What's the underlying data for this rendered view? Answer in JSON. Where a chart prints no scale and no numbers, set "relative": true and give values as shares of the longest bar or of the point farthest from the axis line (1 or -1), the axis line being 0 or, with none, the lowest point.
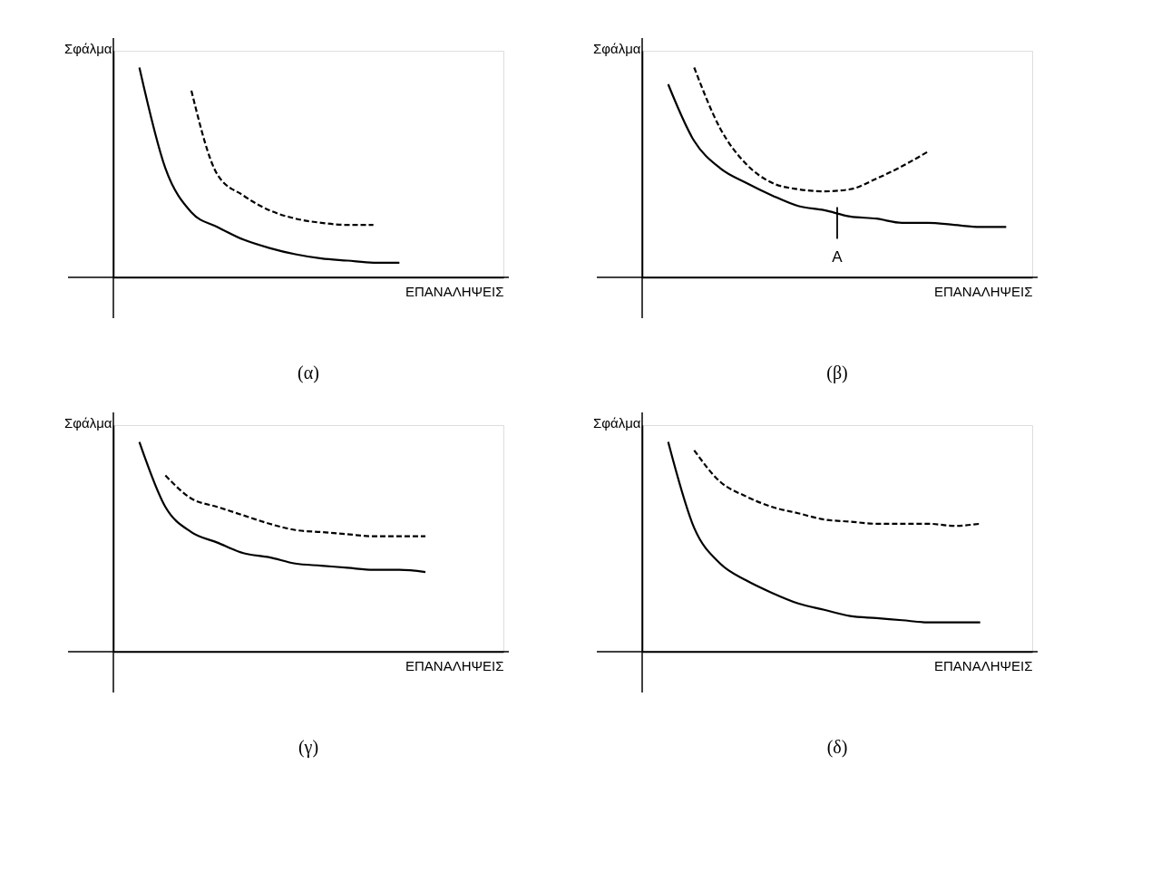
{
  "chart_data": [
    {
      "type": "line",
      "title": "(α)",
      "xlabel": "ΕΠΑΝΑΛΗΨΕΙΣ",
      "ylabel": "Σφάλμα",
      "relative": true,
      "grid": false,
      "marker": "none",
      "tick_labels": false,
      "categories": [
        null,
        null,
        null,
        null,
        null,
        null,
        null,
        null,
        null,
        null,
        null,
        null,
        null,
        null,
        null,
        null
      ],
      "series": [
        {
          "color": "#000000",
          "line_style": "solid",
          "values": [
            null,
            1,
            0.52,
            0.31,
            0.24,
            0.18,
            0.14,
            0.11,
            0.09,
            0.08,
            0.07,
            0.07,
            null,
            null,
            null,
            null
          ]
        },
        {
          "color": "#000000",
          "line_style": "dashed",
          "values": [
            null,
            null,
            null,
            0.89,
            0.49,
            0.39,
            0.32,
            0.28,
            0.26,
            0.25,
            0.25,
            null,
            null,
            null,
            null,
            null
          ]
        }
      ]
    },
    {
      "type": "line",
      "title": "(β)",
      "xlabel": "ΕΠΑΝΑΛΗΨΕΙΣ",
      "ylabel": "Σφάλμα",
      "relative": true,
      "grid": false,
      "marker": "none",
      "tick_labels": false,
      "annotations": [
        "A"
      ],
      "categories": [
        null,
        null,
        null,
        null,
        null,
        null,
        null,
        null,
        null,
        null,
        null,
        null,
        null,
        null,
        null,
        null
      ],
      "series": [
        {
          "color": "#000000",
          "line_style": "solid",
          "values": [
            null,
            0.92,
            0.65,
            0.52,
            0.45,
            0.39,
            0.34,
            0.32,
            0.29,
            0.28,
            0.26,
            0.26,
            0.25,
            0.24,
            0.24,
            null
          ]
        },
        {
          "color": "#000000",
          "line_style": "dashed",
          "values": [
            null,
            null,
            1,
            0.71,
            0.54,
            0.45,
            0.42,
            0.41,
            0.42,
            0.47,
            0.53,
            0.6,
            null,
            null,
            null,
            null
          ]
        }
      ]
    },
    {
      "type": "line",
      "title": "(γ)",
      "xlabel": "ΕΠΑΝΑΛΗΨΕΙΣ",
      "ylabel": "Σφάλμα",
      "relative": true,
      "grid": false,
      "marker": "none",
      "tick_labels": false,
      "categories": [
        null,
        null,
        null,
        null,
        null,
        null,
        null,
        null,
        null,
        null,
        null,
        null,
        null,
        null,
        null,
        null
      ],
      "series": [
        {
          "color": "#000000",
          "line_style": "solid",
          "values": [
            null,
            1,
            0.69,
            0.57,
            0.52,
            0.47,
            0.45,
            0.42,
            0.41,
            0.4,
            0.39,
            0.39,
            0.38,
            null,
            null,
            null
          ]
        },
        {
          "color": "#000000",
          "line_style": "dashed",
          "values": [
            null,
            null,
            0.84,
            0.73,
            0.69,
            0.65,
            0.61,
            0.58,
            0.57,
            0.56,
            0.55,
            0.55,
            0.55,
            null,
            null,
            null
          ]
        }
      ]
    },
    {
      "type": "line",
      "title": "(δ)",
      "xlabel": "ΕΠΑΝΑΛΗΨΕΙΣ",
      "ylabel": "Σφάλμα",
      "relative": true,
      "grid": false,
      "marker": "none",
      "tick_labels": false,
      "categories": [
        null,
        null,
        null,
        null,
        null,
        null,
        null,
        null,
        null,
        null,
        null,
        null,
        null,
        null,
        null,
        null
      ],
      "series": [
        {
          "color": "#000000",
          "line_style": "solid",
          "values": [
            null,
            1,
            0.59,
            0.42,
            0.34,
            0.28,
            0.23,
            0.2,
            0.17,
            0.16,
            0.15,
            0.14,
            0.14,
            0.14,
            null,
            null
          ]
        },
        {
          "color": "#000000",
          "line_style": "dashed",
          "values": [
            null,
            null,
            0.96,
            0.81,
            0.74,
            0.69,
            0.66,
            0.63,
            0.62,
            0.61,
            0.61,
            0.61,
            0.6,
            0.61,
            null,
            null
          ]
        }
      ]
    }
  ]
}
